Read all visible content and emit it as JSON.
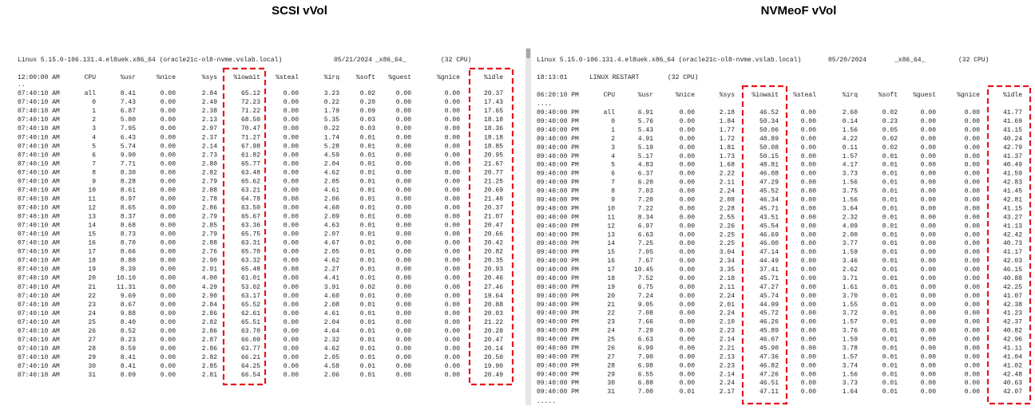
{
  "panels": [
    {
      "title": "SCSI vVol",
      "info": [
        "Linux 5.15.0-106.131.4.el8uek.x86_64 (oracle21c-ol8-nvme.vslab.local)",
        "05/21/2024",
        "_x86_64_",
        "(32 CPU)"
      ],
      "header": [
        "12:00:00 AM",
        "CPU",
        "%usr",
        "%nice",
        "%sys",
        "%iowait",
        "%steal",
        "%irq",
        "%soft",
        "%guest",
        "%gnice",
        "%idle"
      ],
      "ellipsis": "..",
      "rows": [
        [
          "07:40:10 AM",
          "all",
          "8.41",
          "0.00",
          "2.84",
          "65.12",
          "0.00",
          "3.23",
          "0.02",
          "0.00",
          "0.00",
          "20.37"
        ],
        [
          "07:40:10 AM",
          "0",
          "7.43",
          "0.00",
          "2.49",
          "72.23",
          "0.00",
          "0.22",
          "0.20",
          "0.00",
          "0.00",
          "17.43"
        ],
        [
          "07:40:10 AM",
          "1",
          "6.87",
          "0.00",
          "2.38",
          "71.22",
          "0.00",
          "1.79",
          "0.09",
          "0.00",
          "0.00",
          "17.65"
        ],
        [
          "07:40:10 AM",
          "2",
          "5.80",
          "0.00",
          "2.13",
          "68.50",
          "0.00",
          "5.35",
          "0.03",
          "0.00",
          "0.00",
          "18.18"
        ],
        [
          "07:40:10 AM",
          "3",
          "7.95",
          "0.00",
          "2.97",
          "70.47",
          "0.00",
          "0.22",
          "0.03",
          "0.00",
          "0.00",
          "18.36"
        ],
        [
          "07:40:10 AM",
          "4",
          "6.43",
          "0.00",
          "2.37",
          "71.27",
          "0.00",
          "1.74",
          "0.01",
          "0.00",
          "0.00",
          "18.18"
        ],
        [
          "07:40:10 AM",
          "5",
          "5.74",
          "0.00",
          "2.14",
          "67.98",
          "0.00",
          "5.28",
          "0.01",
          "0.00",
          "0.00",
          "18.85"
        ],
        [
          "07:40:10 AM",
          "6",
          "9.90",
          "0.00",
          "2.73",
          "61.82",
          "0.00",
          "4.59",
          "0.01",
          "0.00",
          "0.00",
          "20.95"
        ],
        [
          "07:40:10 AM",
          "7",
          "7.71",
          "0.00",
          "2.80",
          "65.77",
          "0.00",
          "2.04",
          "0.01",
          "0.00",
          "0.00",
          "21.67"
        ],
        [
          "07:40:10 AM",
          "8",
          "8.30",
          "0.00",
          "2.82",
          "63.48",
          "0.00",
          "4.62",
          "0.01",
          "0.00",
          "0.00",
          "20.77"
        ],
        [
          "07:40:10 AM",
          "9",
          "8.28",
          "0.00",
          "2.79",
          "65.62",
          "0.00",
          "2.05",
          "0.01",
          "0.00",
          "0.00",
          "21.25"
        ],
        [
          "07:40:10 AM",
          "10",
          "8.61",
          "0.00",
          "2.88",
          "63.21",
          "0.00",
          "4.61",
          "0.01",
          "0.00",
          "0.00",
          "20.69"
        ],
        [
          "07:40:10 AM",
          "11",
          "8.97",
          "0.00",
          "2.78",
          "64.78",
          "0.00",
          "2.06",
          "0.01",
          "0.00",
          "0.00",
          "21.40"
        ],
        [
          "07:40:10 AM",
          "12",
          "8.65",
          "0.00",
          "2.86",
          "63.50",
          "0.00",
          "4.60",
          "0.01",
          "0.00",
          "0.00",
          "20.37"
        ],
        [
          "07:40:10 AM",
          "13",
          "8.37",
          "0.00",
          "2.79",
          "65.67",
          "0.00",
          "2.09",
          "0.01",
          "0.00",
          "0.00",
          "21.07"
        ],
        [
          "07:40:10 AM",
          "14",
          "8.68",
          "0.00",
          "2.85",
          "63.36",
          "0.00",
          "4.63",
          "0.01",
          "0.00",
          "0.00",
          "20.47"
        ],
        [
          "07:40:10 AM",
          "15",
          "8.73",
          "0.00",
          "2.79",
          "65.75",
          "0.00",
          "2.07",
          "0.01",
          "0.00",
          "0.00",
          "20.66"
        ],
        [
          "07:40:10 AM",
          "16",
          "8.70",
          "0.00",
          "2.88",
          "63.31",
          "0.00",
          "4.67",
          "0.01",
          "0.00",
          "0.00",
          "20.42"
        ],
        [
          "07:40:10 AM",
          "17",
          "8.66",
          "0.00",
          "2.76",
          "65.70",
          "0.00",
          "2.05",
          "0.01",
          "0.00",
          "0.00",
          "20.82"
        ],
        [
          "07:40:10 AM",
          "18",
          "8.80",
          "0.00",
          "2.90",
          "63.32",
          "0.00",
          "4.62",
          "0.01",
          "0.00",
          "0.00",
          "20.35"
        ],
        [
          "07:40:10 AM",
          "19",
          "8.39",
          "0.00",
          "2.91",
          "65.48",
          "0.00",
          "2.27",
          "0.01",
          "0.00",
          "0.00",
          "20.93"
        ],
        [
          "07:40:10 AM",
          "20",
          "10.10",
          "0.00",
          "4.00",
          "61.01",
          "0.00",
          "4.41",
          "0.01",
          "0.00",
          "0.00",
          "20.46"
        ],
        [
          "07:40:10 AM",
          "21",
          "11.31",
          "0.00",
          "4.29",
          "53.02",
          "0.00",
          "3.91",
          "0.02",
          "0.00",
          "0.00",
          "27.46"
        ],
        [
          "07:40:10 AM",
          "22",
          "9.69",
          "0.00",
          "2.90",
          "63.17",
          "0.00",
          "4.60",
          "0.01",
          "0.00",
          "0.00",
          "19.64"
        ],
        [
          "07:40:10 AM",
          "23",
          "8.67",
          "0.00",
          "2.84",
          "65.52",
          "0.00",
          "2.08",
          "0.01",
          "0.00",
          "0.00",
          "20.88"
        ],
        [
          "07:40:10 AM",
          "24",
          "9.88",
          "0.00",
          "2.86",
          "62.61",
          "0.00",
          "4.61",
          "0.01",
          "0.00",
          "0.00",
          "20.03"
        ],
        [
          "07:40:10 AM",
          "25",
          "8.40",
          "0.00",
          "2.82",
          "65.51",
          "0.00",
          "2.04",
          "0.01",
          "0.00",
          "0.00",
          "21.22"
        ],
        [
          "07:40:10 AM",
          "26",
          "8.52",
          "0.00",
          "2.86",
          "63.70",
          "0.00",
          "4.64",
          "0.01",
          "0.00",
          "0.00",
          "20.28"
        ],
        [
          "07:40:10 AM",
          "27",
          "8.23",
          "0.00",
          "2.87",
          "66.09",
          "0.00",
          "2.32",
          "0.01",
          "0.00",
          "0.00",
          "20.47"
        ],
        [
          "07:40:10 AM",
          "28",
          "8.59",
          "0.00",
          "2.86",
          "63.77",
          "0.00",
          "4.62",
          "0.01",
          "0.00",
          "0.00",
          "20.14"
        ],
        [
          "07:40:10 AM",
          "29",
          "8.41",
          "0.00",
          "2.82",
          "66.21",
          "0.00",
          "2.05",
          "0.01",
          "0.00",
          "0.00",
          "20.50"
        ],
        [
          "07:40:10 AM",
          "30",
          "8.41",
          "0.00",
          "2.85",
          "64.25",
          "0.00",
          "4.58",
          "0.01",
          "0.00",
          "0.00",
          "19.90"
        ],
        [
          "07:40:10 AM",
          "31",
          "8.09",
          "0.00",
          "2.81",
          "66.54",
          "0.00",
          "2.06",
          "0.01",
          "0.00",
          "0.00",
          "20.49"
        ]
      ]
    },
    {
      "title": "NVMeoF vVol",
      "info": [
        "Linux 5.15.0-106.131.4.el8uek.x86_64 (oracle21c-ol8-nvme.vslab.local)",
        "05/20/2024",
        "_x86_64_",
        "(32 CPU)"
      ],
      "restart": [
        "18:13:01",
        "LINUX RESTART",
        "(32 CPU)"
      ],
      "header": [
        "06:20:10 PM",
        "CPU",
        "%usr",
        "%nice",
        "%sys",
        "%iowait",
        "%steal",
        "%irq",
        "%soft",
        "%guest",
        "%gnice",
        "%idle"
      ],
      "ellipsis": "....",
      "rows": [
        [
          "09:40:00 PM",
          "all",
          "6.91",
          "0.00",
          "2.18",
          "46.52",
          "0.00",
          "2.60",
          "0.02",
          "0.00",
          "0.00",
          "41.77"
        ],
        [
          "09:40:00 PM",
          "0",
          "5.76",
          "0.00",
          "1.84",
          "50.34",
          "0.00",
          "0.14",
          "0.23",
          "0.00",
          "0.00",
          "41.69"
        ],
        [
          "09:40:00 PM",
          "1",
          "5.43",
          "0.00",
          "1.77",
          "50.06",
          "0.00",
          "1.56",
          "0.05",
          "0.00",
          "0.00",
          "41.15"
        ],
        [
          "09:40:00 PM",
          "2",
          "4.91",
          "0.00",
          "1.72",
          "48.89",
          "0.00",
          "4.22",
          "0.02",
          "0.00",
          "0.00",
          "40.24"
        ],
        [
          "09:40:00 PM",
          "3",
          "5.19",
          "0.00",
          "1.81",
          "50.08",
          "0.00",
          "0.11",
          "0.02",
          "0.00",
          "0.00",
          "42.79"
        ],
        [
          "09:40:00 PM",
          "4",
          "5.17",
          "0.00",
          "1.73",
          "50.15",
          "0.00",
          "1.57",
          "0.01",
          "0.00",
          "0.00",
          "41.37"
        ],
        [
          "09:40:00 PM",
          "5",
          "4.83",
          "0.00",
          "1.68",
          "48.81",
          "0.00",
          "4.17",
          "0.01",
          "0.00",
          "0.00",
          "40.49"
        ],
        [
          "09:40:00 PM",
          "6",
          "6.37",
          "0.00",
          "2.22",
          "46.08",
          "0.00",
          "3.73",
          "0.01",
          "0.00",
          "0.00",
          "41.59"
        ],
        [
          "09:40:00 PM",
          "7",
          "6.20",
          "0.00",
          "2.11",
          "47.29",
          "0.00",
          "1.56",
          "0.01",
          "0.00",
          "0.00",
          "42.83"
        ],
        [
          "09:40:00 PM",
          "8",
          "7.03",
          "0.00",
          "2.24",
          "45.52",
          "0.00",
          "3.75",
          "0.01",
          "0.00",
          "0.00",
          "41.45"
        ],
        [
          "09:40:00 PM",
          "9",
          "7.20",
          "0.00",
          "2.08",
          "46.34",
          "0.00",
          "1.56",
          "0.01",
          "0.00",
          "0.00",
          "42.81"
        ],
        [
          "09:40:00 PM",
          "10",
          "7.22",
          "0.00",
          "2.28",
          "45.71",
          "0.00",
          "3.64",
          "0.01",
          "0.00",
          "0.00",
          "41.15"
        ],
        [
          "09:40:00 PM",
          "11",
          "8.34",
          "0.00",
          "2.55",
          "43.51",
          "0.00",
          "2.32",
          "0.01",
          "0.00",
          "0.00",
          "43.27"
        ],
        [
          "09:40:00 PM",
          "12",
          "6.97",
          "0.00",
          "2.26",
          "45.54",
          "0.00",
          "4.09",
          "0.01",
          "0.00",
          "0.00",
          "41.13"
        ],
        [
          "09:40:00 PM",
          "13",
          "6.63",
          "0.00",
          "2.25",
          "46.69",
          "0.00",
          "2.00",
          "0.01",
          "0.00",
          "0.00",
          "42.42"
        ],
        [
          "09:40:00 PM",
          "14",
          "7.25",
          "0.00",
          "2.25",
          "46.00",
          "0.00",
          "3.77",
          "0.01",
          "0.00",
          "0.00",
          "40.73"
        ],
        [
          "09:40:00 PM",
          "15",
          "7.05",
          "0.00",
          "3.04",
          "47.14",
          "0.00",
          "1.59",
          "0.01",
          "0.00",
          "0.00",
          "41.17"
        ],
        [
          "09:40:00 PM",
          "16",
          "7.67",
          "0.00",
          "2.34",
          "44.49",
          "0.00",
          "3.46",
          "0.01",
          "0.00",
          "0.00",
          "42.03"
        ],
        [
          "09:40:00 PM",
          "17",
          "10.45",
          "0.00",
          "3.35",
          "37.41",
          "0.00",
          "2.62",
          "0.01",
          "0.00",
          "0.00",
          "46.15"
        ],
        [
          "09:40:00 PM",
          "18",
          "7.52",
          "0.00",
          "2.18",
          "45.71",
          "0.00",
          "3.71",
          "0.01",
          "0.00",
          "0.00",
          "40.88"
        ],
        [
          "09:40:00 PM",
          "19",
          "6.75",
          "0.00",
          "2.11",
          "47.27",
          "0.00",
          "1.61",
          "0.01",
          "0.00",
          "0.00",
          "42.25"
        ],
        [
          "09:40:00 PM",
          "20",
          "7.24",
          "0.00",
          "2.24",
          "45.74",
          "0.00",
          "3.70",
          "0.01",
          "0.00",
          "0.00",
          "41.07"
        ],
        [
          "09:40:00 PM",
          "21",
          "9.05",
          "0.00",
          "2.01",
          "44.99",
          "0.00",
          "1.55",
          "0.01",
          "0.00",
          "0.00",
          "42.38"
        ],
        [
          "09:40:00 PM",
          "22",
          "7.08",
          "0.00",
          "2.24",
          "45.72",
          "0.00",
          "3.72",
          "0.01",
          "0.00",
          "0.00",
          "41.23"
        ],
        [
          "09:40:00 PM",
          "23",
          "7.66",
          "0.00",
          "2.10",
          "46.26",
          "0.00",
          "1.57",
          "0.01",
          "0.00",
          "0.00",
          "42.37"
        ],
        [
          "09:40:00 PM",
          "24",
          "7.29",
          "0.00",
          "2.23",
          "45.89",
          "0.00",
          "3.76",
          "0.01",
          "0.00",
          "0.00",
          "40.82"
        ],
        [
          "09:40:00 PM",
          "25",
          "6.63",
          "0.00",
          "2.14",
          "46.67",
          "0.00",
          "1.59",
          "0.01",
          "0.00",
          "0.00",
          "42.96"
        ],
        [
          "09:40:00 PM",
          "26",
          "6.99",
          "0.00",
          "2.21",
          "45.90",
          "0.00",
          "3.78",
          "0.01",
          "0.00",
          "0.00",
          "41.11"
        ],
        [
          "09:40:00 PM",
          "27",
          "7.90",
          "0.00",
          "2.13",
          "47.36",
          "0.00",
          "1.57",
          "0.01",
          "0.00",
          "0.00",
          "41.04"
        ],
        [
          "09:40:00 PM",
          "28",
          "6.98",
          "0.00",
          "2.23",
          "46.82",
          "0.00",
          "3.74",
          "0.01",
          "0.00",
          "0.00",
          "41.02"
        ],
        [
          "09:40:00 PM",
          "29",
          "6.55",
          "0.00",
          "2.14",
          "47.26",
          "0.00",
          "1.56",
          "0.01",
          "0.00",
          "0.00",
          "42.48"
        ],
        [
          "09:40:00 PM",
          "30",
          "6.88",
          "0.00",
          "2.24",
          "46.51",
          "0.00",
          "3.73",
          "0.01",
          "0.00",
          "0.00",
          "40.63"
        ],
        [
          "09:40:00 PM",
          "31",
          "7.00",
          "0.01",
          "2.17",
          "47.11",
          "0.00",
          "1.64",
          "0.01",
          "0.00",
          "0.00",
          "42.07"
        ]
      ],
      "ellipsis_end": "....."
    }
  ]
}
